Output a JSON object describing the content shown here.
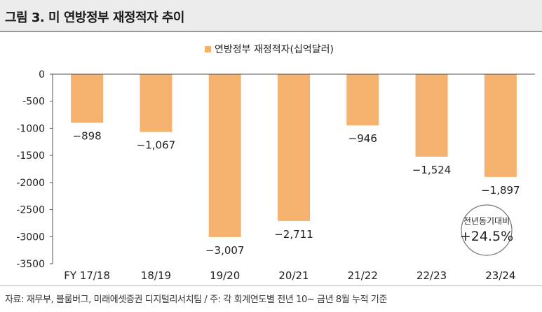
{
  "header": {
    "title": "그림 3. 미 연방정부 재정적자 추이"
  },
  "footer": {
    "source": "자료: 재무부, 블룸버그, 미래에셋증권 디지털리서치팀 / 주: 각 회계연도별 전년 10~ 금년 8월 누적 기준"
  },
  "annotation": {
    "line1": "전년동기대비",
    "line2": "+24.5%"
  },
  "colors": {
    "bar": "#F5B26E",
    "axis": "#555555",
    "circle_border": "#777777"
  },
  "chart_data": {
    "type": "bar",
    "title": "",
    "legend": "연방정부 재정적자(십억달러)",
    "legend_position": "top-center",
    "xlabel": "",
    "ylabel": "",
    "categories": [
      "FY 17/18",
      "18/19",
      "19/20",
      "20/21",
      "21/22",
      "22/23",
      "23/24"
    ],
    "values": [
      -898,
      -1067,
      -3007,
      -2711,
      -946,
      -1524,
      -1897
    ],
    "value_labels": [
      "−898",
      "−1,067",
      "−3,007",
      "−2,711",
      "−946",
      "−1,524",
      "−1,897"
    ],
    "ylim": [
      -3500,
      0
    ],
    "yticks": [
      0,
      -500,
      -1000,
      -1500,
      -2000,
      -2500,
      -3000,
      -3500
    ],
    "ytick_labels": [
      "0",
      "-500",
      "-1000",
      "-1500",
      "-2000",
      "-2500",
      "-3000",
      "-3500"
    ],
    "grid": false
  }
}
